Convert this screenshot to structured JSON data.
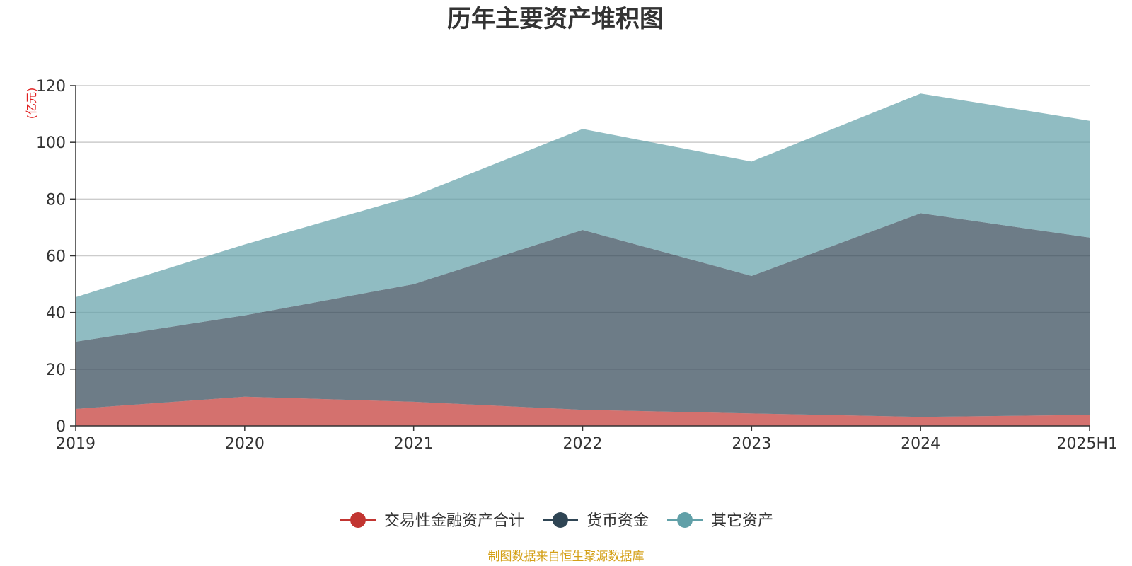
{
  "chart_data": {
    "type": "area",
    "stacked": true,
    "title": "历年主要资产堆积图",
    "y_unit": "(亿元)",
    "categories": [
      "2019",
      "2020",
      "2021",
      "2022",
      "2023",
      "2024",
      "2025H1"
    ],
    "ylim": [
      0,
      120
    ],
    "yticks": [
      0,
      20,
      40,
      60,
      80,
      100,
      120
    ],
    "grid": true,
    "legend_position": "bottom-center",
    "series": [
      {
        "name": "交易性金融资产合计",
        "color": "#c23531",
        "values": [
          6.0,
          10.3,
          8.5,
          5.7,
          4.4,
          3.2,
          3.9
        ]
      },
      {
        "name": "货币资金",
        "color": "#2f4554",
        "values": [
          23.7,
          28.7,
          41.5,
          63.4,
          48.5,
          71.8,
          62.5
        ]
      },
      {
        "name": "其它资产",
        "color": "#61a0a8",
        "values": [
          15.7,
          25.0,
          31.0,
          35.6,
          40.3,
          42.2,
          41.2
        ]
      }
    ],
    "source_note": "制图数据来自恒生聚源数据库"
  }
}
